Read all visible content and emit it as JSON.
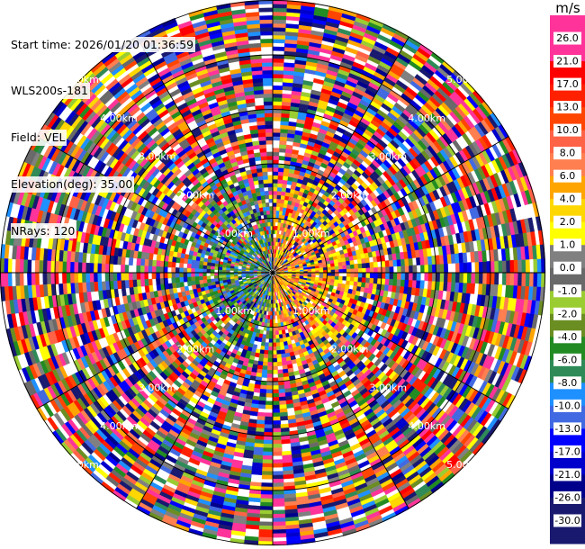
{
  "header": {
    "start_time": "Start time: 2026/01/20 01:36:59",
    "instrument": "WLS200s-181",
    "field": "Field: VEL",
    "elevation": "Elevation(deg): 35.00",
    "nrays": "NRays: 120"
  },
  "chart_data": {
    "type": "heatmap",
    "projection": "polar (PPI scan)",
    "field": "VEL",
    "n_rays": 120,
    "range_ring_labels": [
      "1.00km",
      "2.00km",
      "3.00km",
      "4.00km",
      "5.00km"
    ],
    "colorbar": {
      "unit": "m/s",
      "ticks": [
        "26.0",
        "21.0",
        "17.0",
        "13.0",
        "10.0",
        "8.0",
        "6.0",
        "4.0",
        "2.0",
        "1.0",
        "0.0",
        "-1.0",
        "-2.0",
        "-4.0",
        "-6.0",
        "-8.0",
        "-10.0",
        "-13.0",
        "-17.0",
        "-21.0",
        "-26.0",
        "-30.0"
      ],
      "colors": [
        "#ff3399",
        "#ff3399",
        "#ff0000",
        "#ff2000",
        "#ff4500",
        "#ff6347",
        "#ff7f50",
        "#ffa500",
        "#ffd700",
        "#ffff00",
        "#808080",
        "#696969",
        "#9acd32",
        "#6b8e23",
        "#228b22",
        "#2e8b57",
        "#1e90ff",
        "#4169e1",
        "#0000ff",
        "#0000cd",
        "#00008b",
        "#191970",
        "#191970"
      ]
    }
  }
}
